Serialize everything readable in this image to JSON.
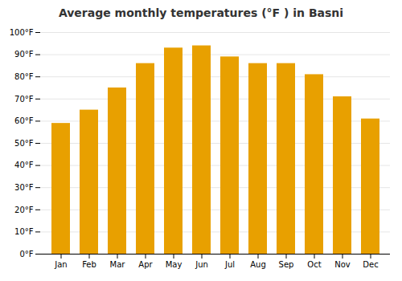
{
  "chart_data": {
    "type": "bar",
    "title": "Average monthly temperatures (°F ) in Basni",
    "categories": [
      "Jan",
      "Feb",
      "Mar",
      "Apr",
      "May",
      "Jun",
      "Jul",
      "Aug",
      "Sep",
      "Oct",
      "Nov",
      "Dec"
    ],
    "values": [
      59,
      65,
      75,
      86,
      93,
      94,
      89,
      86,
      86,
      81,
      71,
      61
    ],
    "color": "#E8A000",
    "ylim": [
      0,
      100
    ],
    "yticks": [
      {
        "value": 0,
        "label": "0°F"
      },
      {
        "value": 10,
        "label": "10°F"
      },
      {
        "value": 20,
        "label": "20°F"
      },
      {
        "value": 30,
        "label": "30°F"
      },
      {
        "value": 40,
        "label": "40°F"
      },
      {
        "value": 50,
        "label": "50°F"
      },
      {
        "value": 60,
        "label": "60°F"
      },
      {
        "value": 70,
        "label": "70°F"
      },
      {
        "value": 80,
        "label": "80°F"
      },
      {
        "value": 90,
        "label": "90°F"
      },
      {
        "value": 100,
        "label": "100°F"
      }
    ],
    "grid": true
  }
}
